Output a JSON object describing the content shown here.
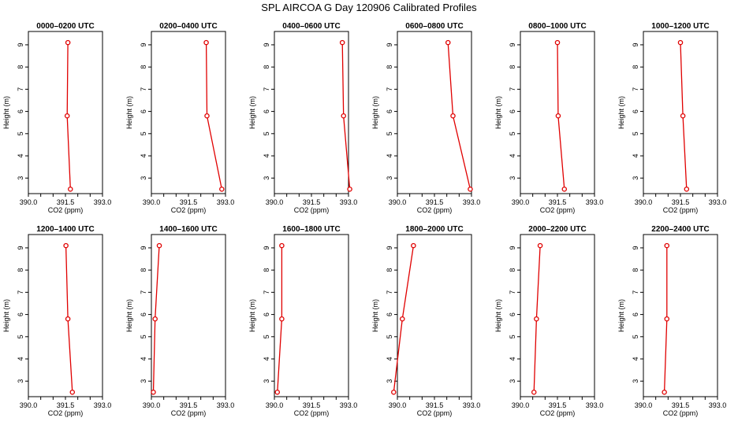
{
  "title": "SPL AIRCOA G  Day 120906  Calibrated Profiles",
  "chart_data": {
    "type": "line",
    "xlabel": "CO2 (ppm)",
    "ylabel": "Height (m)",
    "xlim": [
      390.0,
      393.0
    ],
    "ylim": [
      2.3,
      9.6
    ],
    "xticks": [
      390.0,
      390.5,
      391.0,
      391.5,
      392.0,
      392.5,
      393.0
    ],
    "xtick_labels": [
      "390.0",
      "",
      "",
      "391.5",
      "",
      "",
      "393.0"
    ],
    "yticks": [
      3,
      4,
      5,
      6,
      7,
      8,
      9
    ],
    "line_color": "#e00000",
    "grid": false,
    "panels": [
      {
        "title": "0000–0200 UTC",
        "points": [
          {
            "x": 391.6,
            "y": 9.1
          },
          {
            "x": 391.57,
            "y": 5.8
          },
          {
            "x": 391.7,
            "y": 2.5
          }
        ]
      },
      {
        "title": "0200–0400 UTC",
        "points": [
          {
            "x": 392.22,
            "y": 9.1
          },
          {
            "x": 392.25,
            "y": 5.8
          },
          {
            "x": 392.85,
            "y": 2.5
          }
        ]
      },
      {
        "title": "0400–0600 UTC",
        "points": [
          {
            "x": 392.75,
            "y": 9.1
          },
          {
            "x": 392.8,
            "y": 5.8
          },
          {
            "x": 393.05,
            "y": 2.5
          }
        ]
      },
      {
        "title": "0600–0800 UTC",
        "points": [
          {
            "x": 392.05,
            "y": 9.1
          },
          {
            "x": 392.25,
            "y": 5.8
          },
          {
            "x": 392.95,
            "y": 2.5
          }
        ]
      },
      {
        "title": "0800–1000 UTC",
        "points": [
          {
            "x": 391.5,
            "y": 9.1
          },
          {
            "x": 391.53,
            "y": 5.8
          },
          {
            "x": 391.78,
            "y": 2.5
          }
        ]
      },
      {
        "title": "1000–1200 UTC",
        "points": [
          {
            "x": 391.5,
            "y": 9.1
          },
          {
            "x": 391.6,
            "y": 5.8
          },
          {
            "x": 391.75,
            "y": 2.5
          }
        ]
      },
      {
        "title": "1200–1400 UTC",
        "points": [
          {
            "x": 391.52,
            "y": 9.1
          },
          {
            "x": 391.6,
            "y": 5.8
          },
          {
            "x": 391.78,
            "y": 2.5
          }
        ]
      },
      {
        "title": "1400–1600 UTC",
        "points": [
          {
            "x": 390.32,
            "y": 9.1
          },
          {
            "x": 390.15,
            "y": 5.8
          },
          {
            "x": 390.08,
            "y": 2.5
          }
        ]
      },
      {
        "title": "1600–1800 UTC",
        "points": [
          {
            "x": 390.3,
            "y": 9.1
          },
          {
            "x": 390.3,
            "y": 5.8
          },
          {
            "x": 390.12,
            "y": 2.5
          }
        ]
      },
      {
        "title": "1800–2000 UTC",
        "points": [
          {
            "x": 390.65,
            "y": 9.1
          },
          {
            "x": 390.2,
            "y": 5.8
          },
          {
            "x": 389.85,
            "y": 2.5
          }
        ]
      },
      {
        "title": "2000–2200 UTC",
        "points": [
          {
            "x": 390.8,
            "y": 9.1
          },
          {
            "x": 390.65,
            "y": 5.8
          },
          {
            "x": 390.55,
            "y": 2.5
          }
        ]
      },
      {
        "title": "2200–2400 UTC",
        "points": [
          {
            "x": 390.95,
            "y": 9.1
          },
          {
            "x": 390.95,
            "y": 5.8
          },
          {
            "x": 390.85,
            "y": 2.5
          }
        ]
      }
    ]
  }
}
